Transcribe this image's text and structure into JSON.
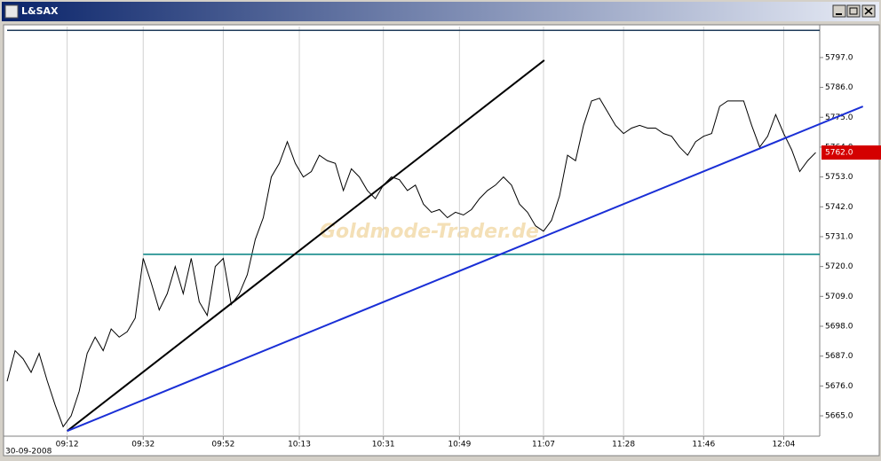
{
  "window_title": "L&SAX",
  "chart_data": {
    "type": "line",
    "date_label": "30-09-2008",
    "watermark": "Goldmode-Trader.de",
    "x": [
      0,
      2,
      4,
      6,
      8,
      10,
      12,
      14,
      16,
      18,
      20,
      22,
      24,
      26,
      28,
      30,
      32,
      34,
      36,
      38,
      40,
      42,
      44,
      46,
      48,
      50,
      52,
      54,
      56,
      58,
      60,
      62,
      64,
      66,
      68,
      70,
      72,
      74,
      76,
      78,
      80,
      82,
      84,
      86,
      88,
      90,
      92,
      94,
      96,
      98,
      100,
      102,
      104,
      106,
      108,
      110,
      112,
      114,
      116,
      118,
      120,
      122,
      124,
      126,
      128,
      130,
      132,
      134,
      136,
      138,
      140,
      142,
      144,
      146,
      148,
      150,
      152,
      154,
      156,
      158,
      160,
      162,
      164,
      166,
      168,
      170,
      172,
      174,
      176,
      178,
      180,
      182,
      184,
      186,
      188,
      190,
      192,
      194,
      196,
      198,
      200,
      202
    ],
    "series": [
      {
        "color": "#000000",
        "values": [
          5677.7,
          5689,
          5686,
          5681,
          5688,
          5678,
          5669,
          5661,
          5665,
          5674,
          5688,
          5694,
          5689,
          5697,
          5694,
          5696,
          5701,
          5723,
          5714,
          5704,
          5710,
          5720,
          5710,
          5723,
          5707,
          5702,
          5720,
          5723,
          5706,
          5710,
          5717,
          5730,
          5738,
          5753,
          5758,
          5766,
          5758,
          5753,
          5755,
          5761,
          5759,
          5758,
          5748,
          5756,
          5753,
          5748,
          5745,
          5750,
          5753,
          5752,
          5748,
          5750,
          5743,
          5740,
          5741,
          5738,
          5740,
          5739,
          5741,
          5745,
          5748,
          5750,
          5753,
          5750,
          5743,
          5740,
          5735,
          5733,
          5737,
          5746,
          5761,
          5759,
          5772,
          5781,
          5782,
          5777,
          5772,
          5769,
          5771,
          5772,
          5771,
          5771,
          5769,
          5768,
          5764,
          5761,
          5766,
          5768,
          5769,
          5779,
          5781,
          5781,
          5781,
          5772,
          5764,
          5768,
          5776,
          5769,
          5763,
          5755,
          5759,
          5762
        ]
      }
    ],
    "trendlines": [
      {
        "color": "#1f3b5a",
        "x": [
          0,
          203
        ],
        "y": [
          5807,
          5807
        ]
      },
      {
        "color": "#008080",
        "x": [
          34,
          203
        ],
        "y": [
          5724.5,
          5724.5
        ]
      },
      {
        "color": "#000000",
        "x": [
          15,
          134.2
        ],
        "y": [
          5659.4,
          5796
        ]
      },
      {
        "color": "#1a2fd6",
        "x": [
          15,
          213.8
        ],
        "y": [
          5659.4,
          5779
        ]
      }
    ],
    "last_price": {
      "value": 5762,
      "label": "5762.0",
      "color": "#d40000"
    },
    "xlim": [
      0,
      203
    ],
    "ylim": [
      5657.5,
      5808.4
    ],
    "xticks": [
      {
        "value": 15,
        "label": "09:12"
      },
      {
        "value": 34,
        "label": "09:32"
      },
      {
        "value": 54,
        "label": "09:52"
      },
      {
        "value": 73,
        "label": "10:13"
      },
      {
        "value": 94,
        "label": "10:31"
      },
      {
        "value": 113,
        "label": "10:49"
      },
      {
        "value": 134,
        "label": "11:07"
      },
      {
        "value": 154,
        "label": "11:28"
      },
      {
        "value": 174,
        "label": "11:46"
      },
      {
        "value": 194,
        "label": "12:04"
      }
    ],
    "yticks": [
      {
        "value": 5665,
        "label": "5665.0"
      },
      {
        "value": 5676,
        "label": "5676.0"
      },
      {
        "value": 5687,
        "label": "5687.0"
      },
      {
        "value": 5698,
        "label": "5698.0"
      },
      {
        "value": 5709,
        "label": "5709.0"
      },
      {
        "value": 5720,
        "label": "5720.0"
      },
      {
        "value": 5731,
        "label": "5731.0"
      },
      {
        "value": 5742,
        "label": "5742.0"
      },
      {
        "value": 5753,
        "label": "5753.0"
      },
      {
        "value": 5764,
        "label": "5764.0"
      },
      {
        "value": 5775,
        "label": "5775.0"
      },
      {
        "value": 5786,
        "label": "5786.0"
      },
      {
        "value": 5797,
        "label": "5797.0"
      }
    ],
    "grid": "x"
  }
}
